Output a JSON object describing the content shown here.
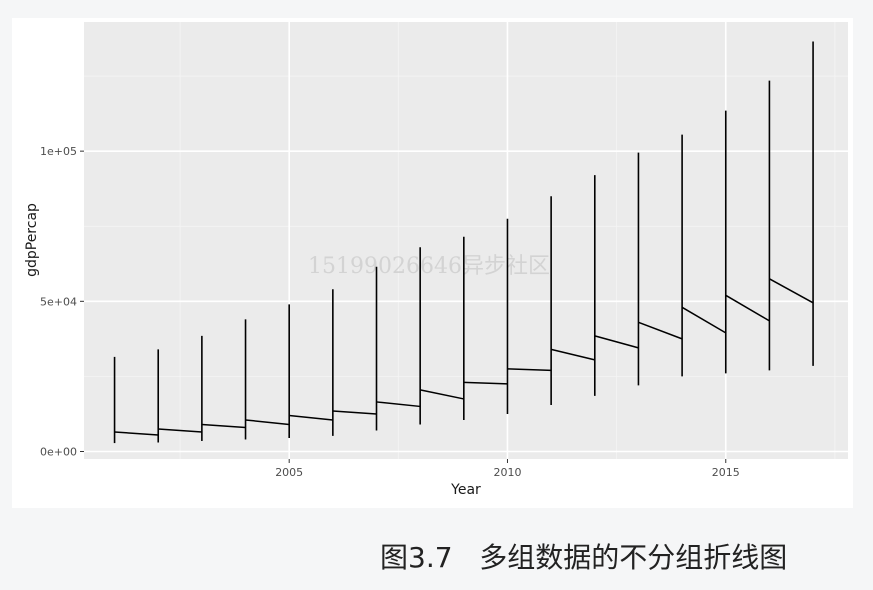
{
  "caption": "图3.7   多组数据的不分组折线图",
  "watermark": "15199026646异步社区",
  "chart_data": {
    "type": "line",
    "xlabel": "Year",
    "ylabel": "gdpPercap",
    "xlim": [
      2000.3,
      2017.8
    ],
    "ylim": [
      -2500,
      143000
    ],
    "x_ticks": [
      2005,
      2010,
      2015
    ],
    "x_tick_labels": [
      "2005",
      "2010",
      "2015"
    ],
    "y_ticks": [
      0,
      50000,
      100000
    ],
    "y_tick_labels": [
      "0e+00",
      "5e+04",
      "1e+05"
    ],
    "grid": true,
    "legend": "none",
    "line_color": "#000000",
    "panel_color": "#ebebeb",
    "years": [
      2001,
      2002,
      2003,
      2004,
      2005,
      2006,
      2007,
      2008,
      2009,
      2010,
      2011,
      2012,
      2013,
      2014,
      2015,
      2016,
      2017
    ],
    "vertical_ranges": [
      {
        "x": 2001,
        "min": 2800,
        "max": 31500
      },
      {
        "x": 2002,
        "min": 3000,
        "max": 34000
      },
      {
        "x": 2003,
        "min": 3500,
        "max": 38500
      },
      {
        "x": 2004,
        "min": 4000,
        "max": 44000
      },
      {
        "x": 2005,
        "min": 4500,
        "max": 49000
      },
      {
        "x": 2006,
        "min": 5200,
        "max": 54000
      },
      {
        "x": 2007,
        "min": 7000,
        "max": 61500
      },
      {
        "x": 2008,
        "min": 9000,
        "max": 68000
      },
      {
        "x": 2009,
        "min": 10500,
        "max": 71500
      },
      {
        "x": 2010,
        "min": 12500,
        "max": 77500
      },
      {
        "x": 2011,
        "min": 15500,
        "max": 85000
      },
      {
        "x": 2012,
        "min": 18500,
        "max": 92000
      },
      {
        "x": 2013,
        "min": 22000,
        "max": 99500
      },
      {
        "x": 2014,
        "min": 25000,
        "max": 105500
      },
      {
        "x": 2015,
        "min": 26000,
        "max": 113500
      },
      {
        "x": 2016,
        "min": 27000,
        "max": 123500
      },
      {
        "x": 2017,
        "min": 28500,
        "max": 136500
      }
    ],
    "connector_segments": [
      [
        [
          2001,
          6500
        ],
        [
          2002,
          5500
        ]
      ],
      [
        [
          2002,
          7500
        ],
        [
          2003,
          6500
        ]
      ],
      [
        [
          2003,
          9000
        ],
        [
          2004,
          8000
        ]
      ],
      [
        [
          2004,
          10500
        ],
        [
          2005,
          9000
        ]
      ],
      [
        [
          2005,
          12000
        ],
        [
          2006,
          10500
        ]
      ],
      [
        [
          2006,
          13500
        ],
        [
          2007,
          12500
        ]
      ],
      [
        [
          2007,
          16500
        ],
        [
          2008,
          15000
        ]
      ],
      [
        [
          2008,
          20500
        ],
        [
          2009,
          17500
        ]
      ],
      [
        [
          2009,
          23000
        ],
        [
          2010,
          22500
        ]
      ],
      [
        [
          2010,
          27500
        ],
        [
          2011,
          27000
        ]
      ],
      [
        [
          2011,
          34000
        ],
        [
          2012,
          30500
        ]
      ],
      [
        [
          2012,
          38500
        ],
        [
          2013,
          34500
        ]
      ],
      [
        [
          2013,
          43000
        ],
        [
          2014,
          37500
        ]
      ],
      [
        [
          2014,
          48000
        ],
        [
          2015,
          39500
        ]
      ],
      [
        [
          2015,
          52000
        ],
        [
          2016,
          43500
        ]
      ],
      [
        [
          2016,
          57500
        ],
        [
          2017,
          49500
        ]
      ]
    ]
  }
}
